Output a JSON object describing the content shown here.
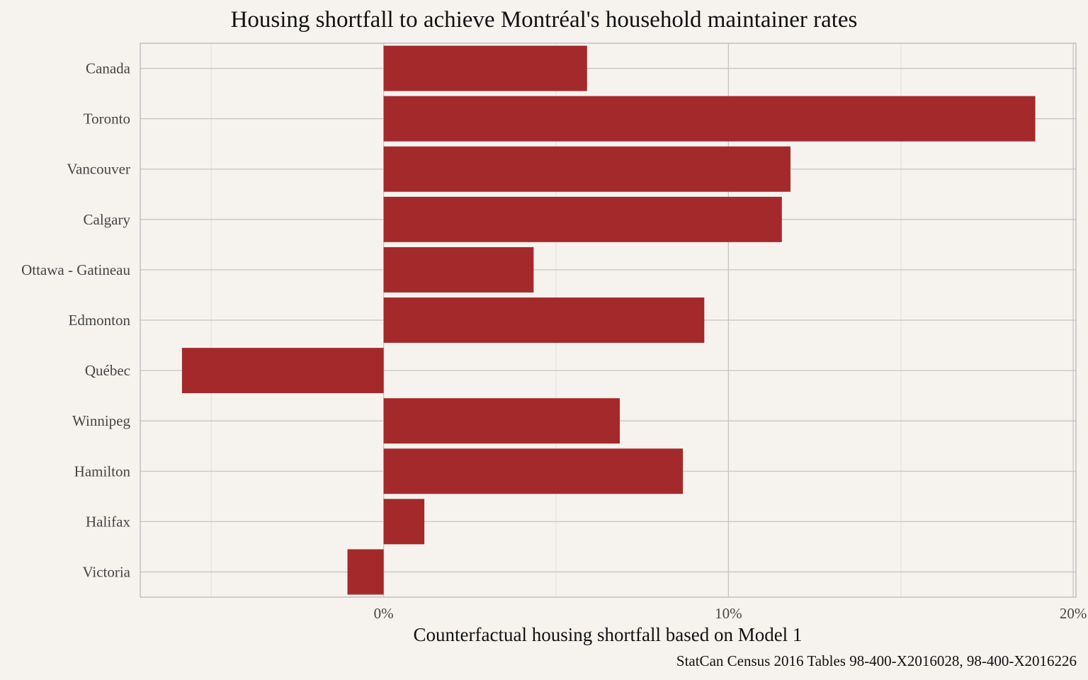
{
  "colors": {
    "background": "#f6f3ef",
    "bar": "#a4292b",
    "grid_major": "#c4c4c4",
    "grid_minor": "#e2dfdb",
    "panel_border": "#b8b8b8"
  },
  "chart_data": {
    "type": "bar",
    "orientation": "horizontal",
    "title": "Housing shortfall to achieve Montréal's household maintainer rates",
    "xlabel": "Counterfactual housing shortfall based on Model 1",
    "ylabel": "",
    "caption": "StatCan Census 2016 Tables 98-400-X2016028, 98-400-X2016226",
    "categories": [
      "Canada",
      "Toronto",
      "Vancouver",
      "Calgary",
      "Ottawa - Gatineau",
      "Edmonton",
      "Québec",
      "Winnipeg",
      "Hamilton",
      "Halifax",
      "Victoria"
    ],
    "values": [
      5.9,
      18.9,
      11.8,
      11.55,
      4.35,
      9.3,
      -5.85,
      6.85,
      8.68,
      1.18,
      -1.05
    ],
    "value_unit": "%",
    "xlim": [
      -7.06,
      20.08
    ],
    "xticks": [
      0,
      10,
      20
    ],
    "xtick_labels": [
      "0%",
      "10%",
      "20%"
    ],
    "x_minor_ticks": [
      -5,
      5,
      15
    ],
    "grid": true,
    "legend": "none"
  }
}
